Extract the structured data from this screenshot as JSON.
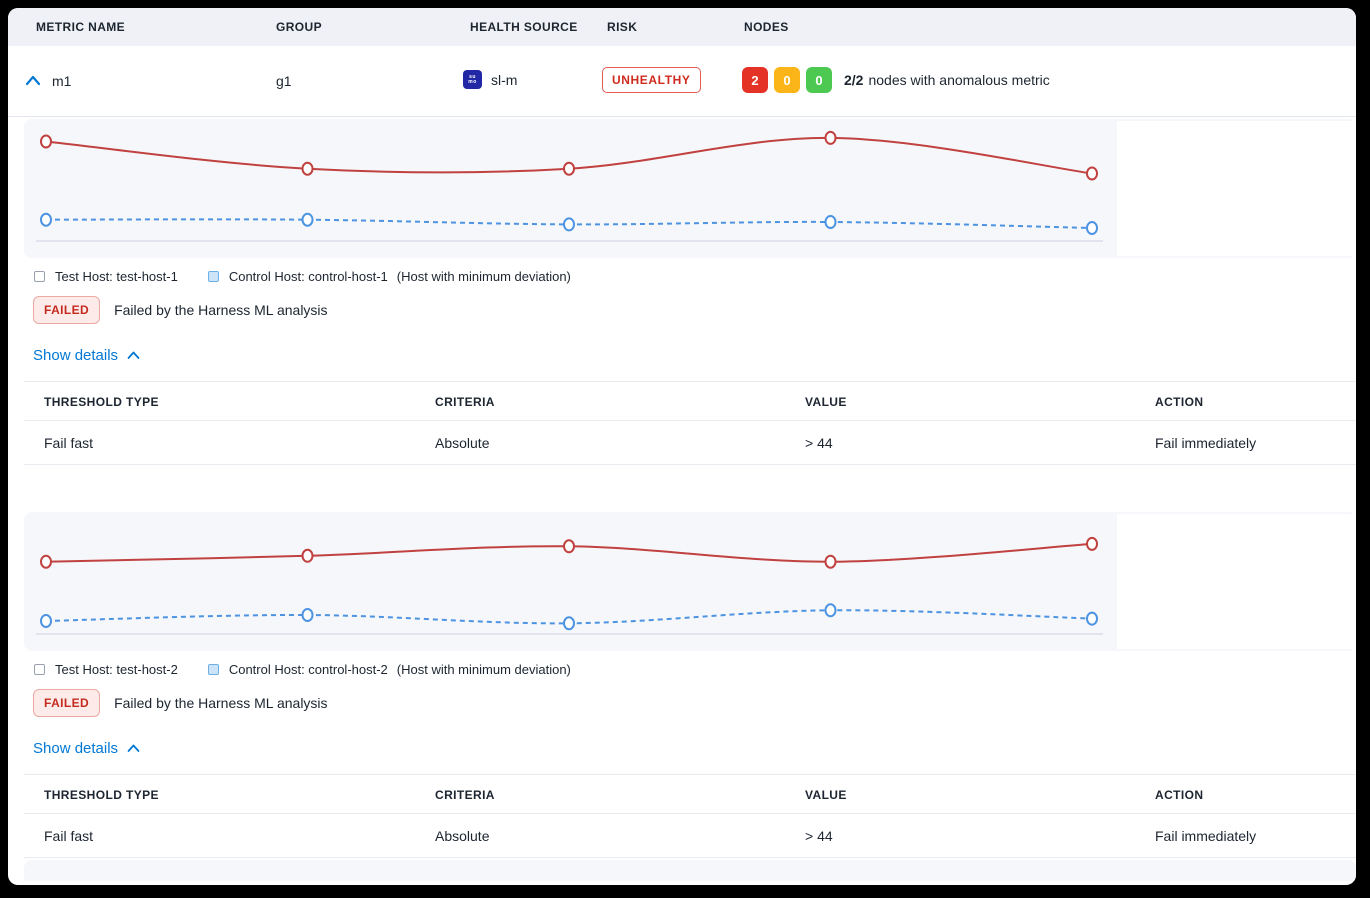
{
  "table_header": {
    "metric_name": "METRIC NAME",
    "group": "GROUP",
    "health_source": "HEALTH SOURCE",
    "risk": "RISK",
    "nodes": "NODES"
  },
  "metric_row": {
    "metric_name": "m1",
    "group": "g1",
    "health_source": "sl-m",
    "health_source_icon": {
      "line1": "su",
      "line2": "mo"
    },
    "risk_badge": "UNHEALTHY",
    "node_counts": {
      "unhealthy": "2",
      "observe": "0",
      "healthy": "0"
    },
    "nodes_summary_ratio": "2/2",
    "nodes_summary_text": "nodes with anomalous metric"
  },
  "sections": [
    {
      "legend": {
        "test": "Test Host: test-host-1",
        "control": "Control Host: control-host-1",
        "note": "(Host with minimum deviation)"
      },
      "status_badge": "FAILED",
      "status_message": "Failed by the Harness ML analysis",
      "details_toggle": "Show details",
      "table": {
        "headers": [
          "THRESHOLD TYPE",
          "CRITERIA",
          "VALUE",
          "ACTION"
        ],
        "rows": [
          [
            "Fail fast",
            "Absolute",
            "> 44",
            "Fail immediately"
          ]
        ]
      }
    },
    {
      "legend": {
        "test": "Test Host: test-host-2",
        "control": "Control Host: control-host-2",
        "note": "(Host with minimum deviation)"
      },
      "status_badge": "FAILED",
      "status_message": "Failed by the Harness ML analysis",
      "details_toggle": "Show details",
      "table": {
        "headers": [
          "THRESHOLD TYPE",
          "CRITERIA",
          "VALUE",
          "ACTION"
        ],
        "rows": [
          [
            "Fail fast",
            "Absolute",
            "> 44",
            "Fail immediately"
          ]
        ]
      }
    }
  ],
  "chart_data": [
    {
      "type": "line",
      "x": [
        1,
        2,
        3,
        4,
        5
      ],
      "series": [
        {
          "name": "Test Host: test-host-1",
          "color": "#c0413f",
          "style": "solid",
          "marker": "open-circle",
          "values": [
            84,
            61,
            61,
            87,
            57
          ]
        },
        {
          "name": "Control Host: control-host-1",
          "color": "#4c93e2",
          "style": "dashed",
          "marker": "open-circle",
          "values": [
            18,
            18,
            14,
            16,
            11
          ]
        }
      ],
      "title": "",
      "xlabel": "",
      "ylabel": "",
      "ylim": [
        0,
        100
      ],
      "grid": false,
      "axes_labels_visible": false,
      "legend_position": "below"
    },
    {
      "type": "line",
      "x": [
        1,
        2,
        3,
        4,
        5
      ],
      "series": [
        {
          "name": "Test Host: test-host-2",
          "color": "#c0413f",
          "style": "solid",
          "marker": "open-circle",
          "values": [
            61,
            66,
            74,
            61,
            76
          ]
        },
        {
          "name": "Control Host: control-host-2",
          "color": "#4c93e2",
          "style": "dashed",
          "marker": "open-circle",
          "values": [
            11,
            16,
            9,
            20,
            13
          ]
        }
      ],
      "title": "",
      "xlabel": "",
      "ylabel": "",
      "ylim": [
        0,
        100
      ],
      "grid": false,
      "axes_labels_visible": false,
      "legend_position": "below"
    }
  ],
  "colors": {
    "accent_blue": "#0278d5",
    "risk_red": "#d02a1e",
    "node_red": "#e43326",
    "node_yellow": "#fcb519",
    "node_green": "#4dc952",
    "test_line": "#c0413f",
    "control_line": "#4c93e2",
    "panel_bg": "#f6f7fb",
    "header_bg": "#eff1f7",
    "sumo_navy": "#2227a5"
  }
}
